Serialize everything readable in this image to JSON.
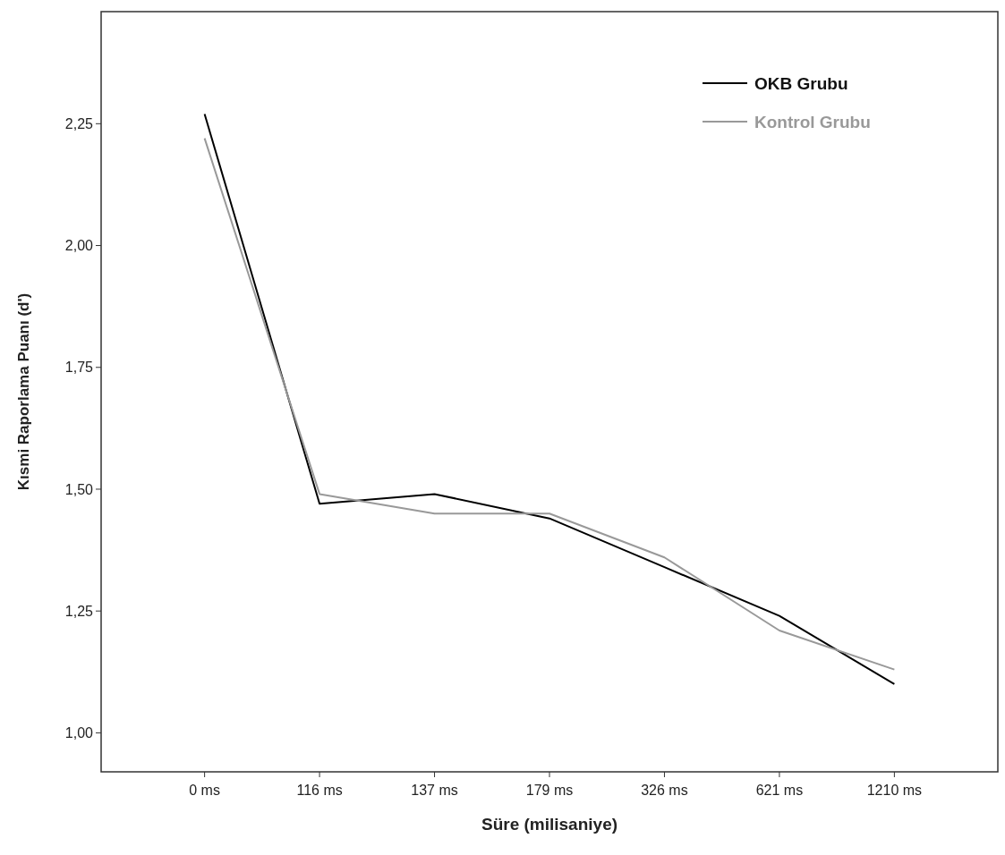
{
  "chart_data": {
    "type": "line",
    "xlabel": "Süre (milisaniye)",
    "ylabel": "Kısmi Raporlama Puanı (d')",
    "categories": [
      "0 ms",
      "116 ms",
      "137 ms",
      "179 ms",
      "326 ms",
      "621 ms",
      "1210 ms"
    ],
    "series": [
      {
        "name": "OKB Grubu",
        "color": "#000000",
        "values": [
          2.27,
          1.47,
          1.49,
          1.44,
          1.34,
          1.24,
          1.1
        ]
      },
      {
        "name": "Kontrol Grubu",
        "color": "#999999",
        "values": [
          2.22,
          1.49,
          1.45,
          1.45,
          1.36,
          1.21,
          1.13
        ]
      }
    ],
    "ylim": [
      0.92,
      2.48
    ],
    "yticks": [
      {
        "value": 1,
        "label": "1,00"
      },
      {
        "value": 1.25,
        "label": "1,25"
      },
      {
        "value": 1.5,
        "label": "1,50"
      },
      {
        "value": 1.75,
        "label": "1,75"
      },
      {
        "value": 2,
        "label": "2,00"
      },
      {
        "value": 2.25,
        "label": "2,25"
      }
    ],
    "legend": "top right",
    "grid": false,
    "marker": "none",
    "line_style": "solid"
  }
}
